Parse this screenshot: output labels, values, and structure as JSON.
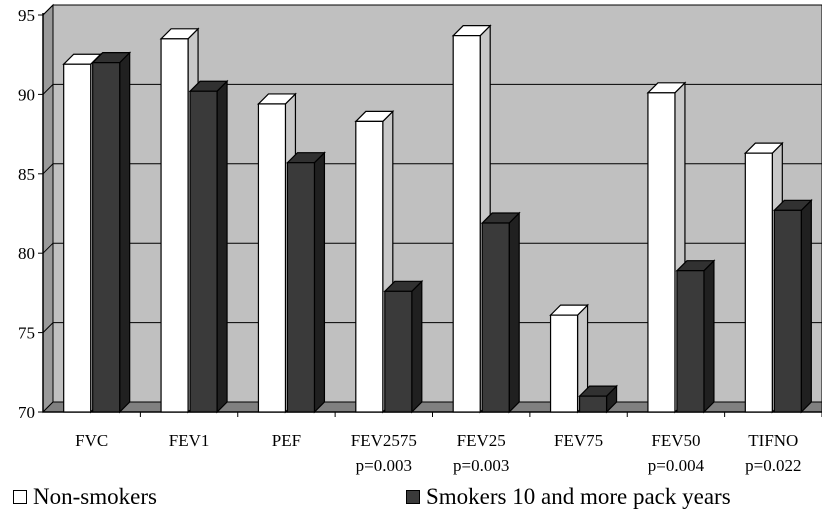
{
  "chart_data": {
    "type": "bar",
    "categories": [
      "FVC",
      "FEV1",
      "PEF",
      "FEV2575",
      "FEV25",
      "FEV75",
      "FEV50",
      "TIFNO"
    ],
    "category_notes": [
      "",
      "",
      "",
      "p=0.003",
      "p=0.003",
      "",
      "p=0.004",
      "p=0.022"
    ],
    "series": [
      {
        "name": "Non-smokers",
        "values": [
          91.9,
          93.5,
          89.4,
          88.3,
          93.7,
          76.1,
          90.1,
          86.3
        ],
        "color": "#ffffff"
      },
      {
        "name": "Smokers 10 and more pack years",
        "values": [
          92.0,
          90.2,
          85.7,
          77.6,
          81.9,
          71.0,
          78.9,
          82.7
        ],
        "color": "#3a3a3a"
      }
    ],
    "ylim": [
      70,
      95
    ],
    "yticks": [
      70,
      75,
      80,
      85,
      90,
      95
    ],
    "grid": true,
    "style": "3d",
    "plot_background": "#c0c0c0",
    "legend_position": "bottom"
  }
}
